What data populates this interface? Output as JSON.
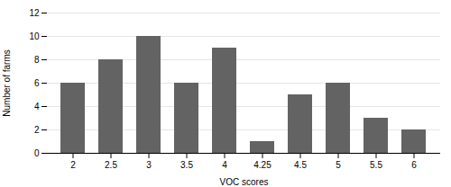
{
  "chart_data": {
    "type": "bar",
    "categories": [
      "2",
      "2.5",
      "3",
      "3.5",
      "4",
      "4.25",
      "4.5",
      "5",
      "5.5",
      "6"
    ],
    "values": [
      6,
      8,
      10,
      6,
      9,
      1,
      5,
      6,
      3,
      2
    ],
    "color": "#636363",
    "xlabel": "VOC scores",
    "ylabel": "Number of farms",
    "ylim": [
      0,
      12
    ],
    "yticks": [
      0,
      2,
      4,
      6,
      8,
      10,
      12
    ],
    "grid": true
  }
}
